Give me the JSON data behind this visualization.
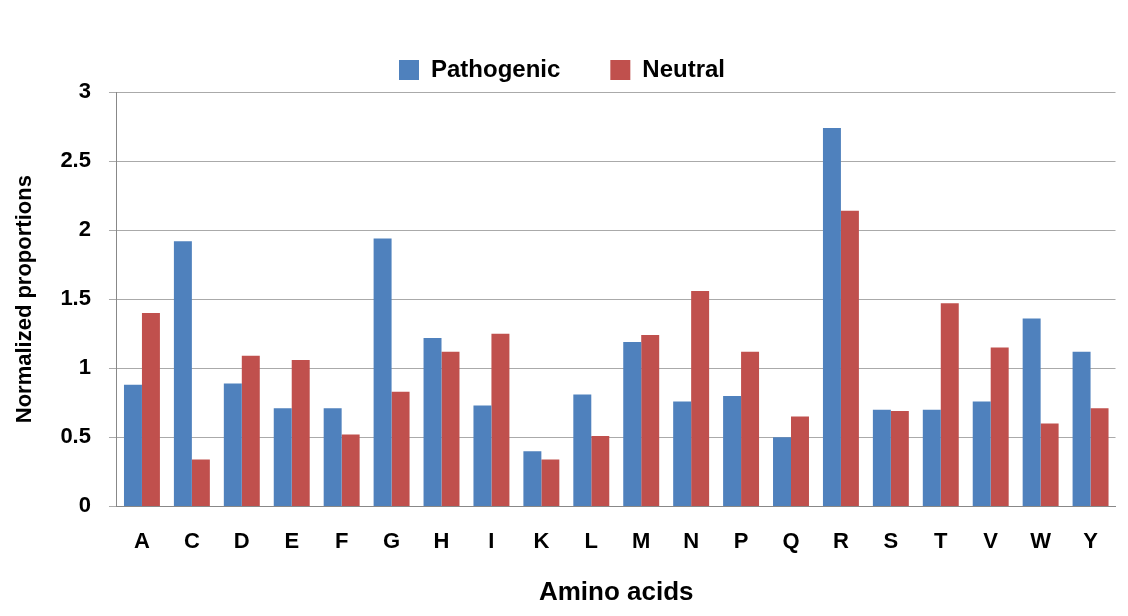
{
  "chart_data": {
    "type": "bar",
    "xlabel": "Amino acids",
    "ylabel": "Normalized proportions",
    "categories": [
      "A",
      "C",
      "D",
      "E",
      "F",
      "G",
      "H",
      "I",
      "K",
      "L",
      "M",
      "N",
      "P",
      "Q",
      "R",
      "S",
      "T",
      "V",
      "W",
      "Y"
    ],
    "series": [
      {
        "name": "Pathogenic",
        "color": "#4f81bd",
        "values": [
          0.88,
          1.92,
          0.89,
          0.71,
          0.71,
          1.94,
          1.22,
          0.73,
          0.4,
          0.81,
          1.19,
          0.76,
          0.8,
          0.5,
          2.74,
          0.7,
          0.7,
          0.76,
          1.36,
          1.12
        ]
      },
      {
        "name": "Neutral",
        "color": "#c0504d",
        "values": [
          1.4,
          0.34,
          1.09,
          1.06,
          0.52,
          0.83,
          1.12,
          1.25,
          0.34,
          0.51,
          1.24,
          1.56,
          1.12,
          0.65,
          2.14,
          0.69,
          1.47,
          1.15,
          0.6,
          0.71
        ]
      }
    ],
    "ylim": [
      0,
      3
    ],
    "yticks": [
      0,
      0.5,
      1,
      1.5,
      2,
      2.5,
      3
    ],
    "grid": "y",
    "legend": "top"
  }
}
